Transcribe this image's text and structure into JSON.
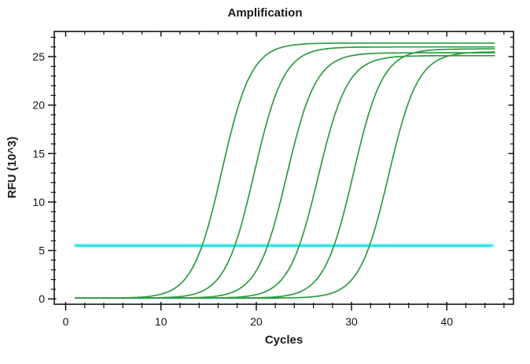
{
  "chart_data": {
    "type": "line",
    "title": "Amplification",
    "xlabel": "Cycles",
    "ylabel": "RFU (10^3)",
    "xlim": [
      -1.2,
      47.0
    ],
    "ylim": [
      -0.55,
      27.6
    ],
    "x_major_ticks": [
      0,
      10,
      20,
      30,
      40
    ],
    "x_minor_step": 2,
    "x_minor_max": 46,
    "y_major_ticks": [
      0,
      5,
      10,
      15,
      20,
      25
    ],
    "y_minor_step": 1,
    "y_minor_max": 27,
    "grid": false,
    "legend": "none",
    "frame_color": "#141414",
    "curve_color": "#2E9C42",
    "curve_width": 1.7,
    "curve_slope_k": 0.65,
    "curve_baseline_rfu_k": 0.08,
    "curve_x_range": [
      1,
      45
    ],
    "threshold": {
      "value_rfu_k": 5.5,
      "x_start": 1,
      "x_end": 44.8,
      "color": "#2BE3ED",
      "glow_color": "#A5F1F6"
    },
    "series": [
      {
        "name": "curve-1",
        "ct": 14.4,
        "midpoint_cycle": 16.4,
        "plateau_rfu_k": 26.4
      },
      {
        "name": "curve-2",
        "ct": 17.8,
        "midpoint_cycle": 19.8,
        "plateau_rfu_k": 26.0
      },
      {
        "name": "curve-3",
        "ct": 21.2,
        "midpoint_cycle": 23.2,
        "plateau_rfu_k": 25.4
      },
      {
        "name": "curve-4",
        "ct": 24.5,
        "midpoint_cycle": 26.5,
        "plateau_rfu_k": 25.1
      },
      {
        "name": "curve-5",
        "ct": 28.2,
        "midpoint_cycle": 30.2,
        "plateau_rfu_k": 25.8
      },
      {
        "name": "curve-6",
        "ct": 31.9,
        "midpoint_cycle": 33.9,
        "plateau_rfu_k": 25.5
      }
    ]
  }
}
